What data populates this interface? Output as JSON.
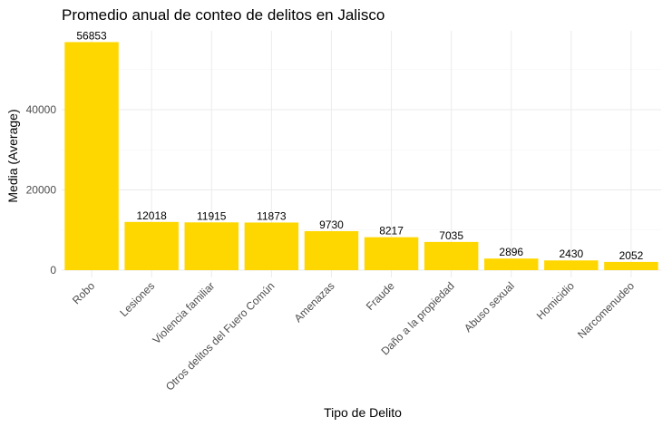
{
  "chart_data": {
    "type": "bar",
    "title": "Promedio anual de conteo de delitos en Jalisco",
    "xlabel": "Tipo de Delito",
    "ylabel": "Media (Average)",
    "categories": [
      "Robo",
      "Lesiones",
      "Violencia familiar",
      "Otros delitos del Fuero Común",
      "Amenazas",
      "Fraude",
      "Daño a la propiedad",
      "Abuso sexual",
      "Homicidio",
      "Narcomenudeo"
    ],
    "values": [
      56853,
      12018,
      11915,
      11873,
      9730,
      8217,
      7035,
      2896,
      2430,
      2052
    ],
    "data_labels": [
      "56853",
      "12018",
      "11915",
      "11873",
      "9730",
      "8217",
      "7035",
      "2896",
      "2430",
      "2052"
    ],
    "yticks": [
      0,
      20000,
      40000
    ],
    "ytick_labels": [
      "0",
      "20000",
      "40000"
    ],
    "ylim": [
      0,
      59700
    ],
    "grid": true,
    "legend": "none",
    "bar_color": "#FFD700"
  }
}
